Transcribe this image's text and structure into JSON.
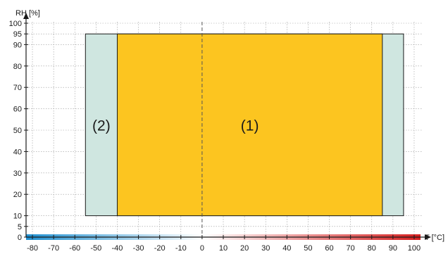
{
  "chart_data": {
    "type": "area",
    "xlabel": "T [°C]",
    "ylabel": "RH [%]",
    "xlim": [
      -83,
      103
    ],
    "ylim": [
      0,
      100
    ],
    "x_ticks": [
      -80,
      -70,
      -60,
      -50,
      -40,
      -30,
      -20,
      -10,
      0,
      10,
      20,
      30,
      40,
      50,
      60,
      70,
      80,
      90,
      100
    ],
    "x_tick_labels": [
      "-80",
      "-70",
      "-60",
      "-50",
      "-40",
      "-30",
      "-20",
      "-10",
      "0",
      "10",
      "20",
      "30",
      "40",
      "50",
      "60",
      "70",
      "80",
      "90",
      "100"
    ],
    "y_ticks": [
      0,
      5,
      10,
      20,
      30,
      40,
      50,
      60,
      70,
      80,
      90,
      95,
      100
    ],
    "y_tick_labels": [
      "0",
      "5",
      "10",
      "20",
      "30",
      "40",
      "50",
      "60",
      "70",
      "80",
      "90",
      "95",
      "100"
    ],
    "grid": true,
    "regions": [
      {
        "label": "(2)",
        "x": [
          -55,
          95
        ],
        "y": [
          10,
          95
        ],
        "color": "#cfe6e0"
      },
      {
        "label": "(1)",
        "x": [
          -40,
          85
        ],
        "y": [
          10,
          95
        ],
        "color": "#fcc520"
      }
    ],
    "reference_line": {
      "x": 0,
      "style": "dashed"
    },
    "temperature_bar": {
      "cold_color": "#1f8fd0",
      "neutral_color": "#ffffff",
      "hot_color": "#d51f1f"
    }
  }
}
